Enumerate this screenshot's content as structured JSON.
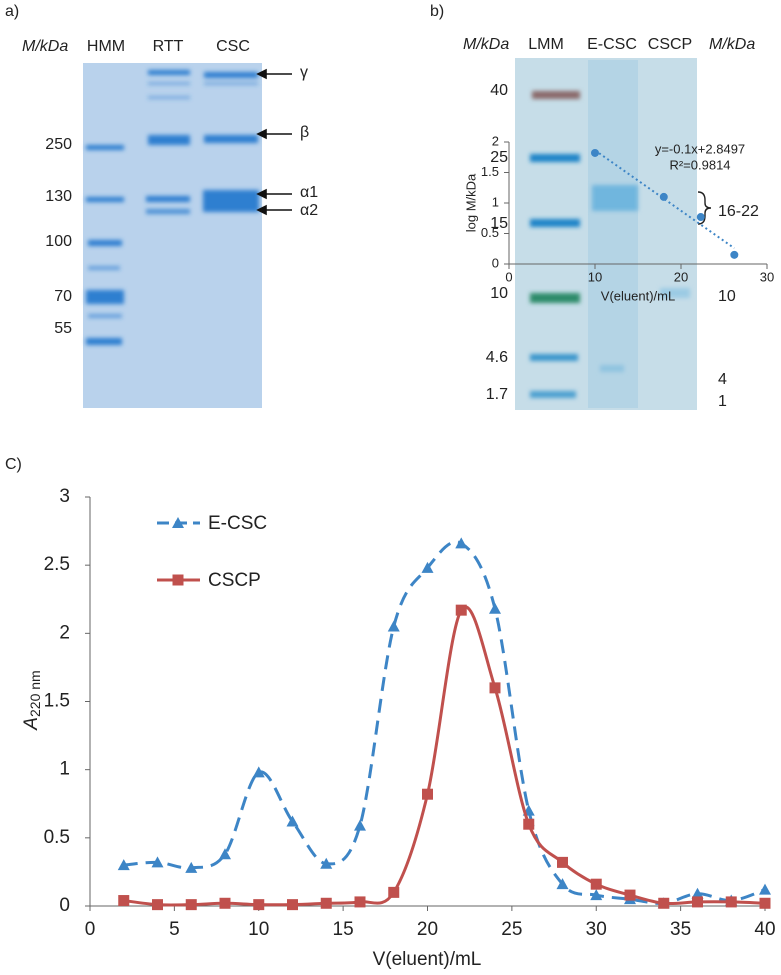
{
  "panel_a": {
    "label": "a)",
    "axis_label": "M/kDa",
    "lanes": [
      "HMM",
      "RTT",
      "CSC"
    ],
    "markers": [
      250,
      130,
      100,
      70,
      55
    ],
    "bands": [
      "γ",
      "β",
      "α1",
      "α2"
    ]
  },
  "panel_b": {
    "label": "b)",
    "axis_label_left": "M/kDa",
    "lanes": [
      "LMM",
      "E-CSC",
      "CSCP"
    ],
    "axis_label_right": "M/kDa",
    "markers": [
      40,
      25,
      15,
      10,
      4.6,
      1.7
    ],
    "bands": [
      "16-22",
      "10",
      "4",
      "1"
    ]
  },
  "chart_data": [
    {
      "type": "line",
      "panel_label": "C)",
      "xlabel": "V(eluent)/mL",
      "ylabel": "A",
      "ylabel_sub": "220 nm",
      "x": [
        2,
        4,
        6,
        8,
        10,
        12,
        14,
        16,
        18,
        20,
        22,
        24,
        26,
        28,
        30,
        32,
        34,
        36,
        38,
        40
      ],
      "series": [
        {
          "name": "E-CSC",
          "color": "#3d85c6",
          "marker": "triangle",
          "dashed": true,
          "values": [
            0.3,
            0.32,
            0.28,
            0.38,
            0.98,
            0.62,
            0.31,
            0.59,
            2.05,
            2.48,
            2.66,
            2.18,
            0.7,
            0.16,
            0.08,
            0.05,
            0.02,
            0.09,
            0.04,
            0.12
          ]
        },
        {
          "name": "CSCP",
          "color": "#c0504d",
          "marker": "square",
          "dashed": false,
          "values": [
            0.04,
            0.01,
            0.01,
            0.02,
            0.01,
            0.01,
            0.02,
            0.03,
            0.1,
            0.82,
            2.17,
            1.6,
            0.6,
            0.32,
            0.16,
            0.08,
            0.02,
            0.03,
            0.03,
            0.02
          ]
        }
      ],
      "xlim": [
        0,
        40
      ],
      "xticks": [
        0,
        5,
        10,
        15,
        20,
        25,
        30,
        35,
        40
      ],
      "ylim": [
        0,
        3
      ],
      "yticks": [
        0,
        0.5,
        1,
        1.5,
        2,
        2.5,
        3
      ],
      "grid": false
    },
    {
      "type": "scatter",
      "xlabel": "V(eluent)/mL",
      "ylabel": "log M/kDa",
      "color": "#3d85c6",
      "trendline": true,
      "annotations": [
        "y=-0.1x+2.8497",
        "R²=0.9814"
      ],
      "x": [
        10,
        18,
        22.3,
        26.2
      ],
      "values": [
        1.82,
        1.1,
        0.77,
        0.15
      ],
      "xlim": [
        0,
        30
      ],
      "xticks": [
        0,
        10,
        20,
        30
      ],
      "ylim": [
        0,
        2
      ],
      "yticks": [
        0,
        0.5,
        1,
        1.5,
        2
      ],
      "grid": false
    }
  ]
}
